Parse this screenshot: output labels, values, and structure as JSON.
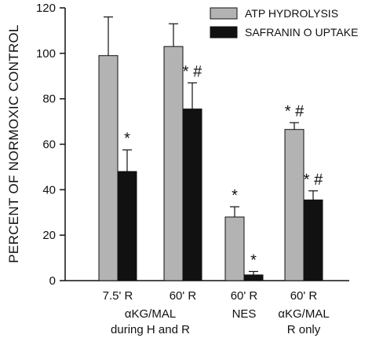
{
  "chart_data": {
    "type": "bar",
    "ylabel": "PERCENT OF NORMOXIC CONTROL",
    "xlabel": "",
    "ylim": [
      0,
      120
    ],
    "yticks": [
      "0",
      "20",
      "40",
      "60",
      "80",
      "100",
      "120"
    ],
    "legend_position": "top-right",
    "categories": [
      "7.5' R",
      "60' R",
      "60' R",
      "60' R"
    ],
    "category_groups": [
      {
        "label_lines": [
          "αKG/MAL",
          "during H and R"
        ],
        "categories": [
          0,
          1
        ]
      },
      {
        "label_lines": [
          "NES"
        ],
        "categories": [
          2
        ]
      },
      {
        "label_lines": [
          "αKG/MAL",
          "R only"
        ],
        "categories": [
          3
        ]
      }
    ],
    "series": [
      {
        "name": "ATP HYDROLYSIS",
        "color": "#b3b3b3",
        "values": [
          99,
          103,
          28,
          66.5
        ],
        "errors": [
          17,
          10,
          4.5,
          3
        ],
        "annotations": [
          "",
          "",
          "*",
          "*#"
        ]
      },
      {
        "name": "SAFRANIN O UPTAKE",
        "color": "#111111",
        "values": [
          48,
          75.5,
          2.5,
          35.5
        ],
        "errors": [
          9.5,
          11.5,
          1.5,
          4
        ],
        "annotations": [
          "*",
          "*#",
          "*",
          "*#"
        ]
      }
    ],
    "grid": false,
    "error_bars": true
  }
}
